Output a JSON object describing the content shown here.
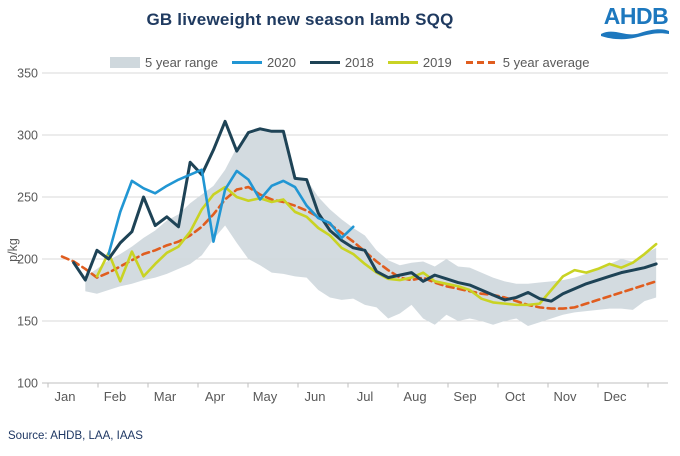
{
  "header": {
    "title": "GB liveweight new season lamb SQQ",
    "logo_text": "AHDB"
  },
  "source_text": "Source: AHDB, LAA, IAAS",
  "colors": {
    "title": "#1f3a60",
    "logo_blue": "#1d78be",
    "axis_text": "#595959",
    "gridline": "#d9d9d9",
    "axis_line": "#bfbfbf",
    "band": "#cfd8dd",
    "s2020": "#2196d3",
    "s2018": "#1e4356",
    "s2019": "#c9d324",
    "avg": "#e05d1f",
    "source": "#1f3864"
  },
  "chart_data": {
    "type": "line",
    "title": "GB liveweight new season lamb SQQ",
    "xlabel": "",
    "ylabel": "p/kg",
    "ylim": [
      100,
      350
    ],
    "y_ticks": [
      350,
      300,
      250,
      200,
      150,
      100
    ],
    "x_tick_labels": [
      "Jan",
      "Feb",
      "Mar",
      "Apr",
      "May",
      "Jun",
      "Jul",
      "Aug",
      "Sep",
      "Oct",
      "Nov",
      "Dec"
    ],
    "x_unit": "week-of-year (52 weekly points)",
    "grid": "horizontal only",
    "legend_position": "top",
    "legend": [
      {
        "label": "5 year range",
        "swatch": "band",
        "color": "#cfd8dd"
      },
      {
        "label": "2020",
        "swatch": "line",
        "color": "#2196d3"
      },
      {
        "label": "2018",
        "swatch": "line",
        "color": "#1e4356"
      },
      {
        "label": "2019",
        "swatch": "line",
        "color": "#c9d324"
      },
      {
        "label": "5 year average",
        "swatch": "dashed",
        "color": "#e05d1f"
      }
    ],
    "band": {
      "name": "5 year range",
      "color": "#cfd8dd",
      "top": [
        null,
        null,
        186,
        192,
        199,
        204,
        210,
        217,
        223,
        231,
        236,
        245,
        252,
        259,
        272,
        290,
        300,
        304,
        304,
        303,
        265,
        264,
        250,
        240,
        232,
        225,
        219,
        207,
        199,
        195,
        197,
        198,
        194,
        200,
        194,
        193,
        189,
        185,
        182,
        180,
        180,
        181,
        182,
        183,
        185,
        188,
        192,
        196,
        200,
        198,
        204,
        209
      ],
      "bottom": [
        null,
        null,
        174,
        172,
        175,
        178,
        180,
        183,
        185,
        188,
        192,
        196,
        203,
        216,
        227,
        213,
        200,
        195,
        189,
        188,
        186,
        185,
        175,
        169,
        167,
        168,
        163,
        161,
        152,
        156,
        163,
        152,
        147,
        155,
        150,
        152,
        150,
        147,
        150,
        152,
        146,
        149,
        152,
        155,
        157,
        158,
        159,
        160,
        160,
        159,
        166,
        169
      ]
    },
    "series": [
      {
        "name": "2020",
        "color": "#2196d3",
        "style": "solid",
        "width": 2.6,
        "values": [
          null,
          null,
          null,
          null,
          204,
          238,
          263,
          257,
          253,
          259,
          264,
          268,
          272,
          214,
          256,
          271,
          264,
          248,
          259,
          263,
          258,
          243,
          233,
          229,
          217,
          226,
          null,
          null,
          null,
          null,
          null,
          null,
          null,
          null,
          null,
          null,
          null,
          null,
          null,
          null,
          null,
          null,
          null,
          null,
          null,
          null,
          null,
          null,
          null,
          null,
          null,
          null
        ]
      },
      {
        "name": "2018",
        "color": "#1e4356",
        "style": "solid",
        "width": 3,
        "values": [
          null,
          197,
          183,
          207,
          200,
          213,
          222,
          250,
          227,
          234,
          226,
          278,
          268,
          288,
          311,
          287,
          302,
          305,
          303,
          303,
          265,
          264,
          237,
          223,
          215,
          209,
          207,
          190,
          185,
          187,
          189,
          182,
          187,
          184,
          181,
          179,
          175,
          171,
          167,
          169,
          173,
          168,
          166,
          172,
          176,
          180,
          183,
          186,
          189,
          191,
          193,
          196
        ]
      },
      {
        "name": "2019",
        "color": "#c9d324",
        "style": "solid",
        "width": 2.6,
        "values": [
          null,
          null,
          null,
          186,
          205,
          182,
          206,
          186,
          196,
          205,
          210,
          222,
          240,
          252,
          258,
          250,
          247,
          249,
          246,
          248,
          238,
          234,
          225,
          219,
          209,
          204,
          196,
          189,
          184,
          183,
          185,
          189,
          182,
          180,
          178,
          175,
          168,
          165,
          164,
          163,
          163,
          164,
          175,
          186,
          191,
          189,
          192,
          196,
          193,
          197,
          204,
          212
        ]
      },
      {
        "name": "5 year average",
        "color": "#e05d1f",
        "style": "dashed",
        "width": 2.6,
        "values": [
          202,
          198,
          192,
          185,
          189,
          194,
          199,
          204,
          207,
          211,
          214,
          219,
          226,
          236,
          248,
          256,
          258,
          252,
          248,
          246,
          243,
          239,
          234,
          228,
          221,
          214,
          206,
          198,
          191,
          185,
          183,
          185,
          181,
          178,
          176,
          174,
          172,
          171,
          169,
          166,
          163,
          161,
          160,
          160,
          161,
          164,
          167,
          170,
          173,
          176,
          179,
          182
        ]
      }
    ]
  }
}
